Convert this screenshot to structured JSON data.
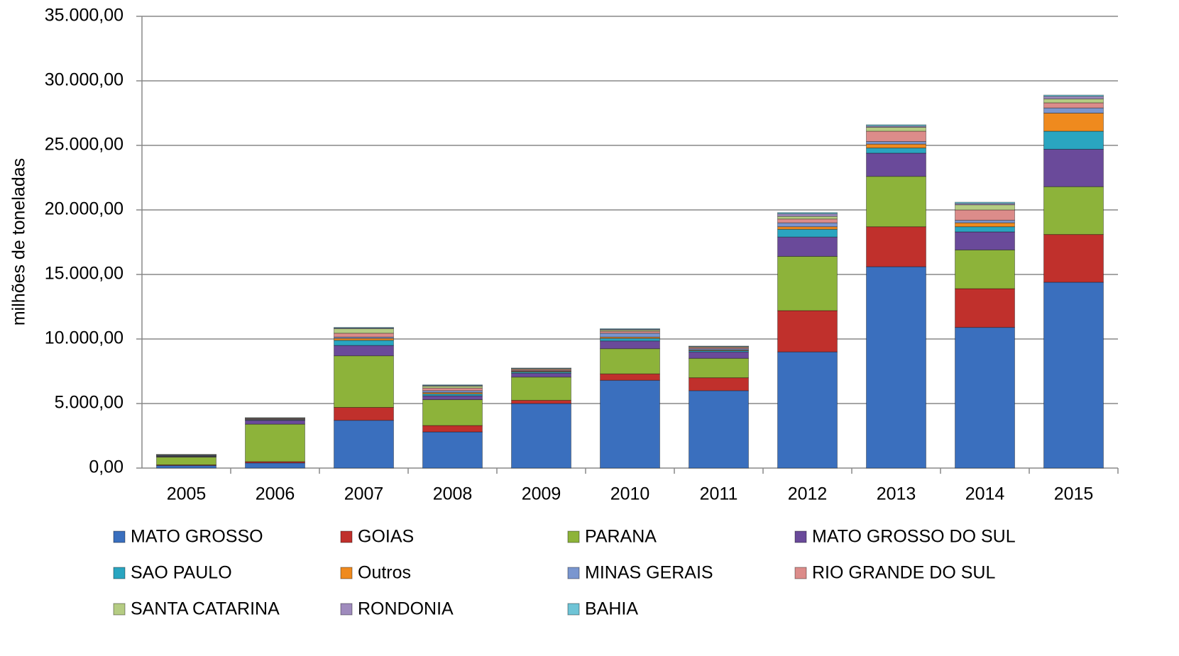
{
  "chart_data": {
    "type": "stacked_bar",
    "y_label": "milhões de toneladas",
    "categories": [
      "2005",
      "2006",
      "2007",
      "2008",
      "2009",
      "2010",
      "2011",
      "2012",
      "2013",
      "2014",
      "2015"
    ],
    "series": [
      {
        "name": "MATO GROSSO",
        "color": "#3a6fbe",
        "values": [
          200,
          400,
          3700,
          2800,
          5000,
          6800,
          6000,
          9000,
          15600,
          10900,
          14400
        ]
      },
      {
        "name": "GOIAS",
        "color": "#c0302c",
        "values": [
          50,
          100,
          1000,
          500,
          250,
          500,
          1000,
          3200,
          3100,
          3000,
          3700
        ]
      },
      {
        "name": "PARANA",
        "color": "#8db33a",
        "values": [
          600,
          2900,
          4000,
          2000,
          1800,
          1950,
          1500,
          4200,
          3900,
          3000,
          3700
        ]
      },
      {
        "name": "MATO GROSSO DO SUL",
        "color": "#6a4a9a",
        "values": [
          50,
          300,
          800,
          300,
          300,
          600,
          500,
          1500,
          1800,
          1400,
          2900
        ]
      },
      {
        "name": "SAO PAULO",
        "color": "#2aa5c0",
        "values": [
          20,
          30,
          400,
          150,
          100,
          200,
          100,
          600,
          400,
          400,
          1400
        ]
      },
      {
        "name": "Outros",
        "color": "#ef8a1e",
        "values": [
          20,
          30,
          150,
          100,
          50,
          100,
          50,
          200,
          300,
          300,
          1400
        ]
      },
      {
        "name": "MINAS GERAIS",
        "color": "#7a96cf",
        "values": [
          50,
          50,
          100,
          150,
          50,
          300,
          100,
          300,
          200,
          200,
          400
        ]
      },
      {
        "name": "RIO GRANDE DO SUL",
        "color": "#dc8c8a",
        "values": [
          20,
          40,
          300,
          200,
          100,
          150,
          100,
          300,
          800,
          800,
          400
        ]
      },
      {
        "name": "SANTA CATARINA",
        "color": "#b5cc83",
        "values": [
          30,
          30,
          350,
          150,
          50,
          100,
          50,
          200,
          300,
          400,
          300
        ]
      },
      {
        "name": "RONDONIA",
        "color": "#9f8bbd",
        "values": [
          5,
          10,
          50,
          50,
          30,
          50,
          30,
          200,
          100,
          100,
          200
        ]
      },
      {
        "name": "BAHIA",
        "color": "#6fc4d6",
        "values": [
          5,
          10,
          50,
          50,
          20,
          50,
          20,
          100,
          100,
          100,
          100
        ]
      }
    ],
    "ylim": [
      0,
      35000
    ],
    "yticks": [
      {
        "value": 0,
        "label": "0,00"
      },
      {
        "value": 5000,
        "label": "5.000,00"
      },
      {
        "value": 10000,
        "label": "10.000,00"
      },
      {
        "value": 15000,
        "label": "15.000,00"
      },
      {
        "value": 20000,
        "label": "20.000,00"
      },
      {
        "value": 25000,
        "label": "25.000,00"
      },
      {
        "value": 30000,
        "label": "30.000,00"
      },
      {
        "value": 35000,
        "label": "35.000,00"
      }
    ],
    "grid": true,
    "legend": "bottom"
  }
}
